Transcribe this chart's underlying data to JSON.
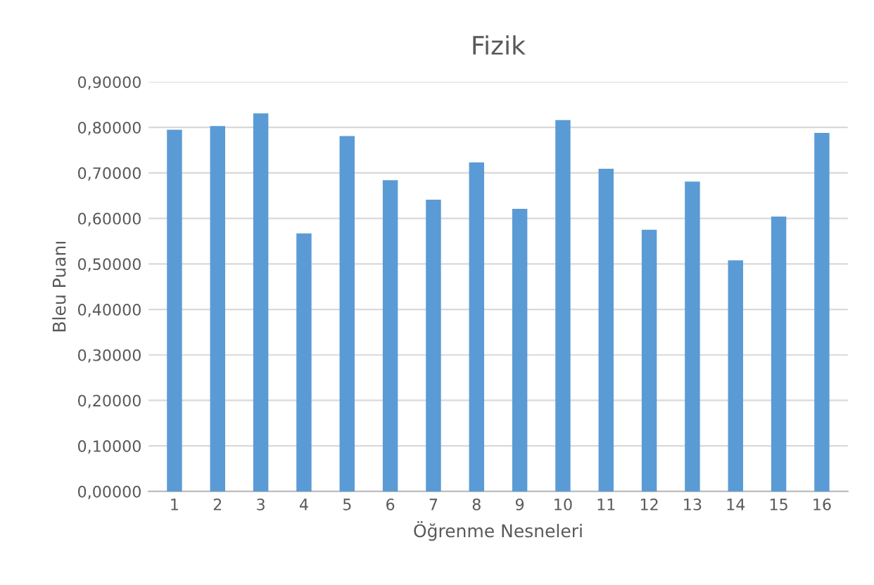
{
  "chart_data": {
    "type": "bar",
    "title": "Fizik",
    "xlabel": "Öğrenme Nesneleri",
    "ylabel": "Bleu Puanı",
    "categories": [
      "1",
      "2",
      "3",
      "4",
      "5",
      "6",
      "7",
      "8",
      "9",
      "10",
      "11",
      "12",
      "13",
      "14",
      "15",
      "16"
    ],
    "values": [
      0.795,
      0.803,
      0.831,
      0.567,
      0.781,
      0.684,
      0.641,
      0.723,
      0.621,
      0.816,
      0.709,
      0.575,
      0.681,
      0.508,
      0.604,
      0.788
    ],
    "color": "#5b9bd5",
    "ylim": [
      0,
      0.9
    ],
    "yticks": [
      {
        "value": 0,
        "label": "0,00000"
      },
      {
        "value": 0.1,
        "label": "0,10000"
      },
      {
        "value": 0.2,
        "label": "0,20000"
      },
      {
        "value": 0.3,
        "label": "0,30000"
      },
      {
        "value": 0.4,
        "label": "0,40000"
      },
      {
        "value": 0.5,
        "label": "0,50000"
      },
      {
        "value": 0.6,
        "label": "0,60000"
      },
      {
        "value": 0.7,
        "label": "0,70000"
      },
      {
        "value": 0.8,
        "label": "0,80000"
      },
      {
        "value": 0.9,
        "label": "0,90000"
      }
    ],
    "grid": "y"
  }
}
